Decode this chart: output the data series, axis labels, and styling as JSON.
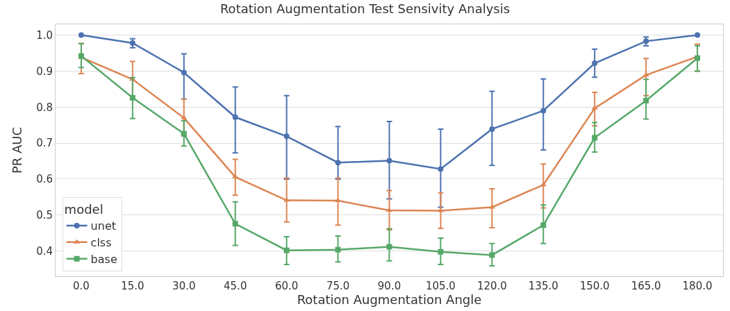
{
  "chart_data": {
    "type": "line",
    "title": "Rotation Augmentation Test Sensivity Analysis",
    "xlabel": "Rotation Augmentation Angle",
    "ylabel": "PR AUC",
    "legend_title": "model",
    "legend": "bottom left",
    "grid": "y",
    "categories": [
      "0.0",
      "15.0",
      "30.0",
      "45.0",
      "60.0",
      "75.0",
      "90.0",
      "105.0",
      "120.0",
      "135.0",
      "150.0",
      "165.0",
      "180.0"
    ],
    "ylim": [
      0.33,
      1.03
    ],
    "yticks": [
      {
        "value": 0.4,
        "label": "0.4"
      },
      {
        "value": 0.5,
        "label": "0.5"
      },
      {
        "value": 0.6,
        "label": "0.6"
      },
      {
        "value": 0.7,
        "label": "0.7"
      },
      {
        "value": 0.8,
        "label": "0.8"
      },
      {
        "value": 0.9,
        "label": "0.9"
      },
      {
        "value": 1.0,
        "label": "1.0"
      }
    ],
    "series": [
      {
        "name": "unet",
        "color": "#4c72b0",
        "marker": "circle",
        "values": [
          1.0,
          0.978,
          0.896,
          0.772,
          0.719,
          0.646,
          0.651,
          0.628,
          0.739,
          0.79,
          0.922,
          0.983,
          1.0
        ],
        "errors": [
          null,
          [
            0.965,
            0.99
          ],
          [
            0.822,
            0.948
          ],
          [
            0.673,
            0.856
          ],
          [
            0.6,
            0.832
          ],
          [
            0.6,
            0.746
          ],
          [
            0.545,
            0.76
          ],
          [
            0.522,
            0.739
          ],
          [
            0.638,
            0.844
          ],
          [
            0.681,
            0.878
          ],
          [
            0.883,
            0.961
          ],
          [
            0.97,
            0.995
          ],
          null
        ]
      },
      {
        "name": "clss",
        "color": "#dd8452",
        "marker": "triangle",
        "values": [
          0.938,
          0.877,
          0.77,
          0.606,
          0.541,
          0.54,
          0.513,
          0.512,
          0.522,
          0.584,
          0.797,
          0.889,
          0.94
        ],
        "errors": [
          [
            0.893,
            0.977
          ],
          [
            0.828,
            0.927
          ],
          [
            0.72,
            0.822
          ],
          [
            0.555,
            0.655
          ],
          [
            0.481,
            0.603
          ],
          [
            0.472,
            0.603
          ],
          [
            0.459,
            0.568
          ],
          [
            0.463,
            0.562
          ],
          [
            0.465,
            0.573
          ],
          [
            0.52,
            0.642
          ],
          [
            0.748,
            0.841
          ],
          [
            0.832,
            0.935
          ],
          [
            0.9,
            0.975
          ]
        ]
      },
      {
        "name": "base",
        "color": "#55a868",
        "marker": "square",
        "values": [
          0.942,
          0.826,
          0.726,
          0.476,
          0.402,
          0.404,
          0.412,
          0.398,
          0.389,
          0.472,
          0.715,
          0.818,
          0.936
        ],
        "errors": [
          [
            0.91,
            0.976
          ],
          [
            0.768,
            0.882
          ],
          [
            0.692,
            0.762
          ],
          [
            0.416,
            0.537
          ],
          [
            0.363,
            0.44
          ],
          [
            0.37,
            0.442
          ],
          [
            0.373,
            0.462
          ],
          [
            0.363,
            0.436
          ],
          [
            0.359,
            0.421
          ],
          [
            0.421,
            0.528
          ],
          [
            0.675,
            0.757
          ],
          [
            0.767,
            0.877
          ],
          [
            0.9,
            0.97
          ]
        ]
      }
    ]
  }
}
